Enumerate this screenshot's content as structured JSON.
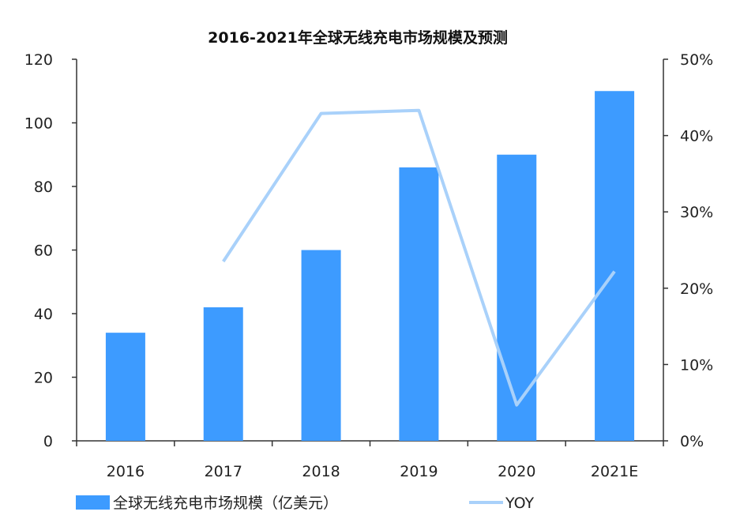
{
  "chart_data": {
    "type": "bar",
    "title": "2016-2021年全球无线充电市场规模及预测",
    "categories": [
      "2016",
      "2017",
      "2018",
      "2019",
      "2020",
      "2021E"
    ],
    "series": [
      {
        "name": "全球无线充电市场规模（亿美元）",
        "type": "bar",
        "axis": "left",
        "values": [
          34,
          42,
          60,
          86,
          90,
          110
        ],
        "color": "#3d9bff"
      },
      {
        "name": "YOY",
        "type": "line",
        "axis": "right",
        "values": [
          null,
          23.5,
          42.9,
          43.3,
          4.7,
          22.2
        ],
        "color": "#a9d1fa"
      }
    ],
    "y_left": {
      "min": 0,
      "max": 120,
      "ticks": [
        "0",
        "20",
        "40",
        "60",
        "80",
        "100",
        "120"
      ]
    },
    "y_right": {
      "min": 0,
      "max": 50,
      "ticks": [
        "0%",
        "10%",
        "20%",
        "30%",
        "40%",
        "50%"
      ]
    },
    "grid": false,
    "legend_position": "bottom-left"
  }
}
